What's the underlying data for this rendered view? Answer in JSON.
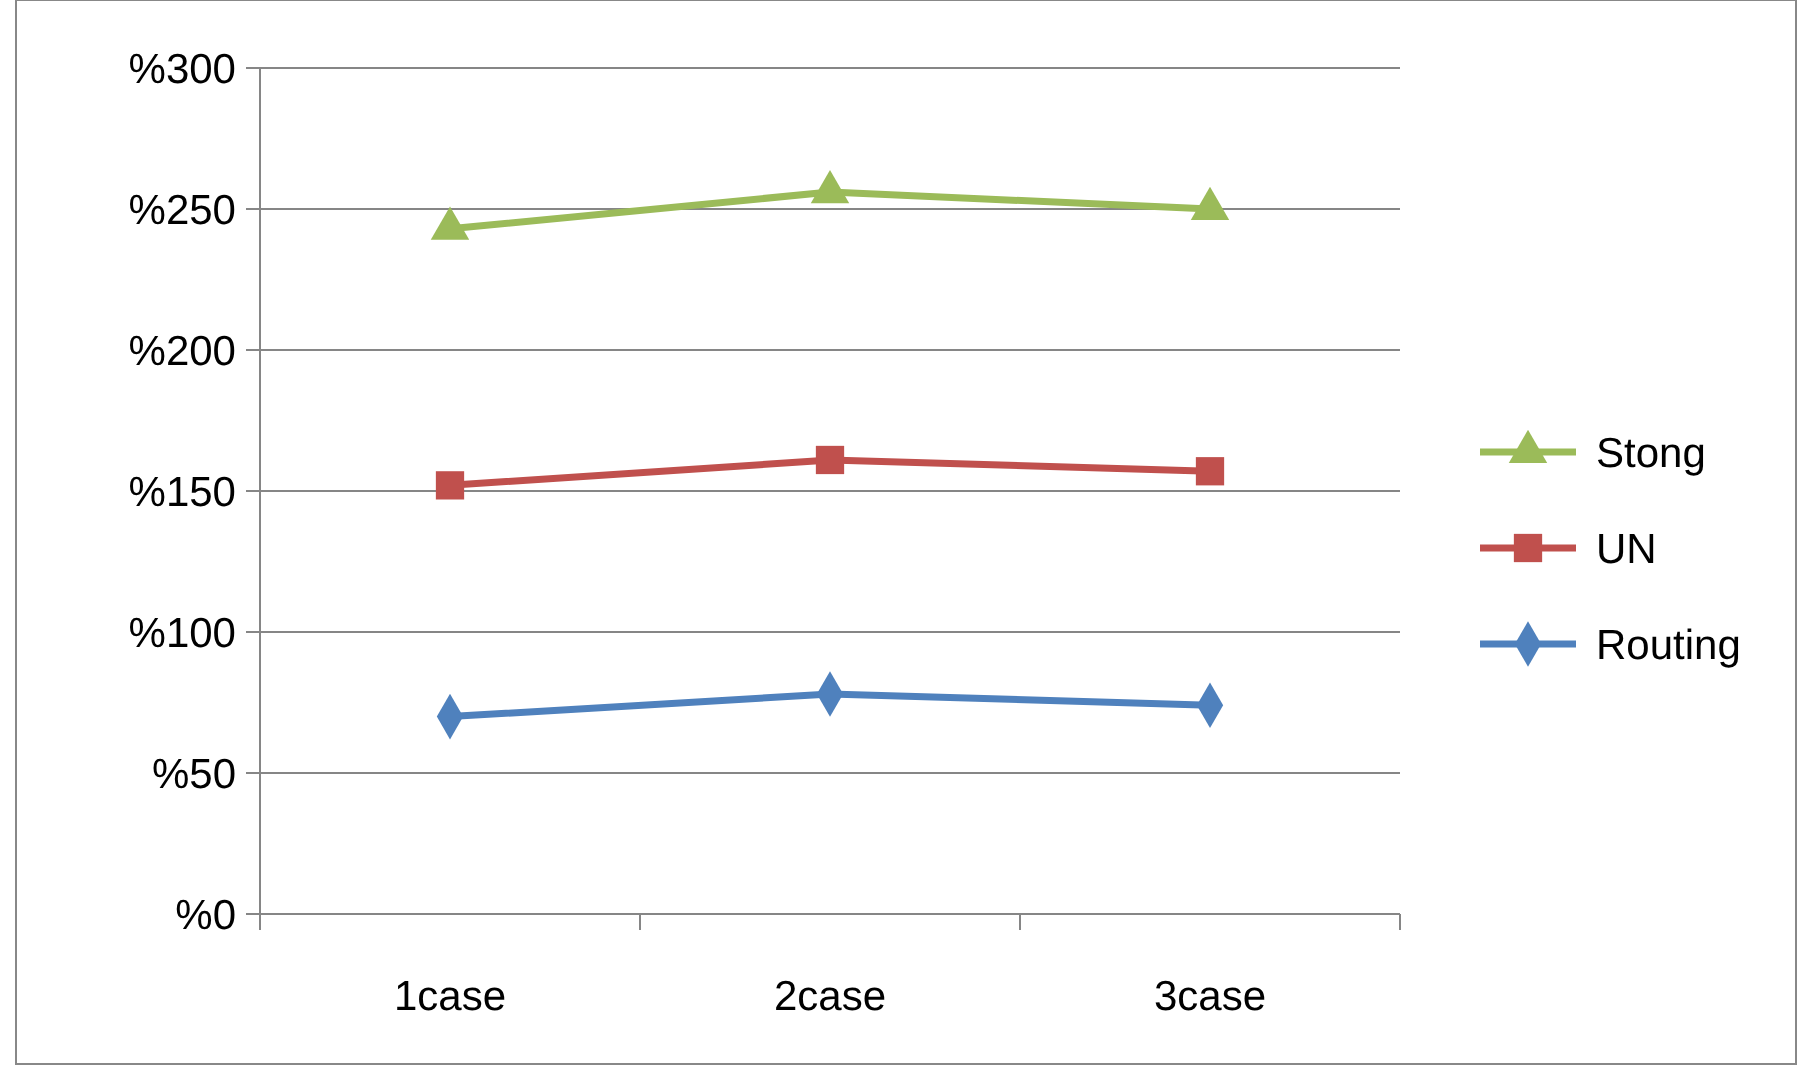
{
  "chart_data": {
    "type": "line",
    "categories": [
      "1case",
      "2case",
      "3case"
    ],
    "series": [
      {
        "name": "Stong",
        "color": "#9bbb59",
        "marker": "triangle",
        "values": [
          243,
          256,
          250
        ]
      },
      {
        "name": "UN",
        "color": "#c0504d",
        "marker": "square",
        "values": [
          152,
          161,
          157
        ]
      },
      {
        "name": "Routing",
        "color": "#4f81bd",
        "marker": "diamond",
        "values": [
          70,
          78,
          74
        ]
      }
    ],
    "ylim": [
      0,
      300
    ],
    "yticks": [
      {
        "value": 0,
        "label": "%0"
      },
      {
        "value": 50,
        "label": "%50"
      },
      {
        "value": 100,
        "label": "%100"
      },
      {
        "value": 150,
        "label": "%150"
      },
      {
        "value": 200,
        "label": "%200"
      },
      {
        "value": 250,
        "label": "%250"
      },
      {
        "value": 300,
        "label": "%300"
      }
    ],
    "grid": "y",
    "legend": "right"
  }
}
